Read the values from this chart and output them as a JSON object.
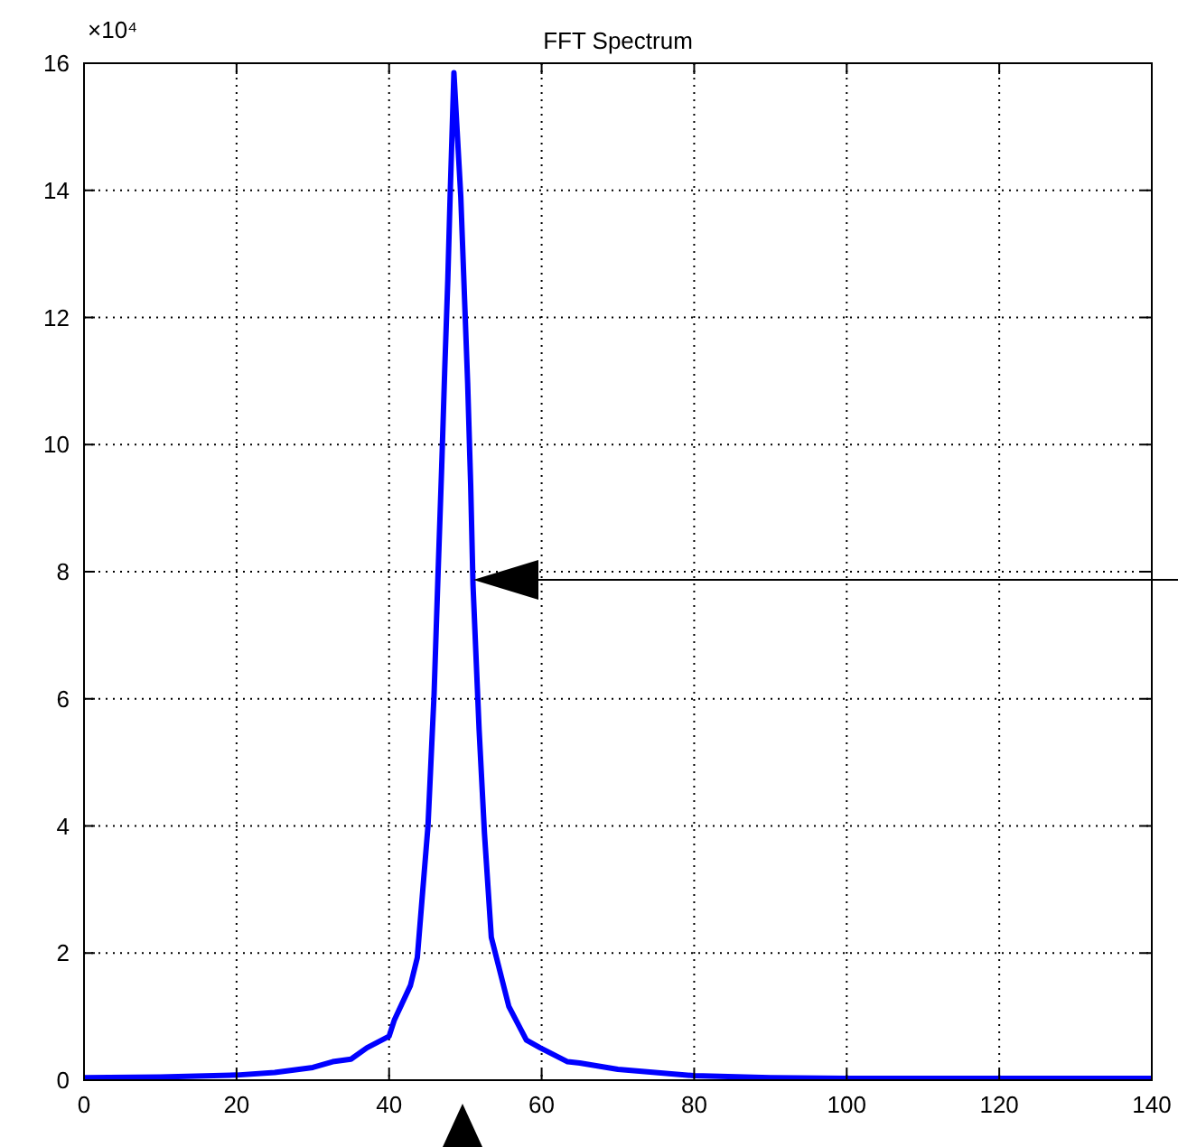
{
  "chart_data": {
    "type": "line",
    "title": "FFT Spectrum",
    "x": [
      0,
      10,
      20,
      25,
      30,
      32.6,
      35,
      37.1,
      40,
      40.7,
      42.8,
      43.7,
      45.1,
      45.9,
      46.4,
      46.9,
      47.3,
      47.7,
      48,
      48.5,
      49.4,
      50.3,
      50.7,
      51,
      51.8,
      52.5,
      53.4,
      55.7,
      58,
      59.8,
      63.4,
      65,
      70,
      80,
      90,
      100,
      120,
      140
    ],
    "series": [
      {
        "color": "#0000ff",
        "values": [
          0.04,
          0.05,
          0.08,
          0.12,
          0.2,
          0.29,
          0.33,
          0.51,
          0.69,
          0.95,
          1.49,
          1.93,
          4,
          6.08,
          7.9,
          9.66,
          11.2,
          12.6,
          13.9,
          15.85,
          13.9,
          10.97,
          9.35,
          7.8,
          5.52,
          3.89,
          2.25,
          1.16,
          0.63,
          0.51,
          0.29,
          0.27,
          0.17,
          0.07,
          0.04,
          0.03,
          0.03,
          0.03
        ]
      }
    ],
    "xlim": [
      0,
      140
    ],
    "xticks": [
      0,
      20,
      40,
      60,
      80,
      100,
      120,
      140
    ],
    "ylim": [
      0,
      16
    ],
    "yticks": [
      0,
      2,
      4,
      6,
      8,
      10,
      12,
      14,
      16
    ],
    "grid": true,
    "annotations": [
      "×10⁴"
    ]
  }
}
